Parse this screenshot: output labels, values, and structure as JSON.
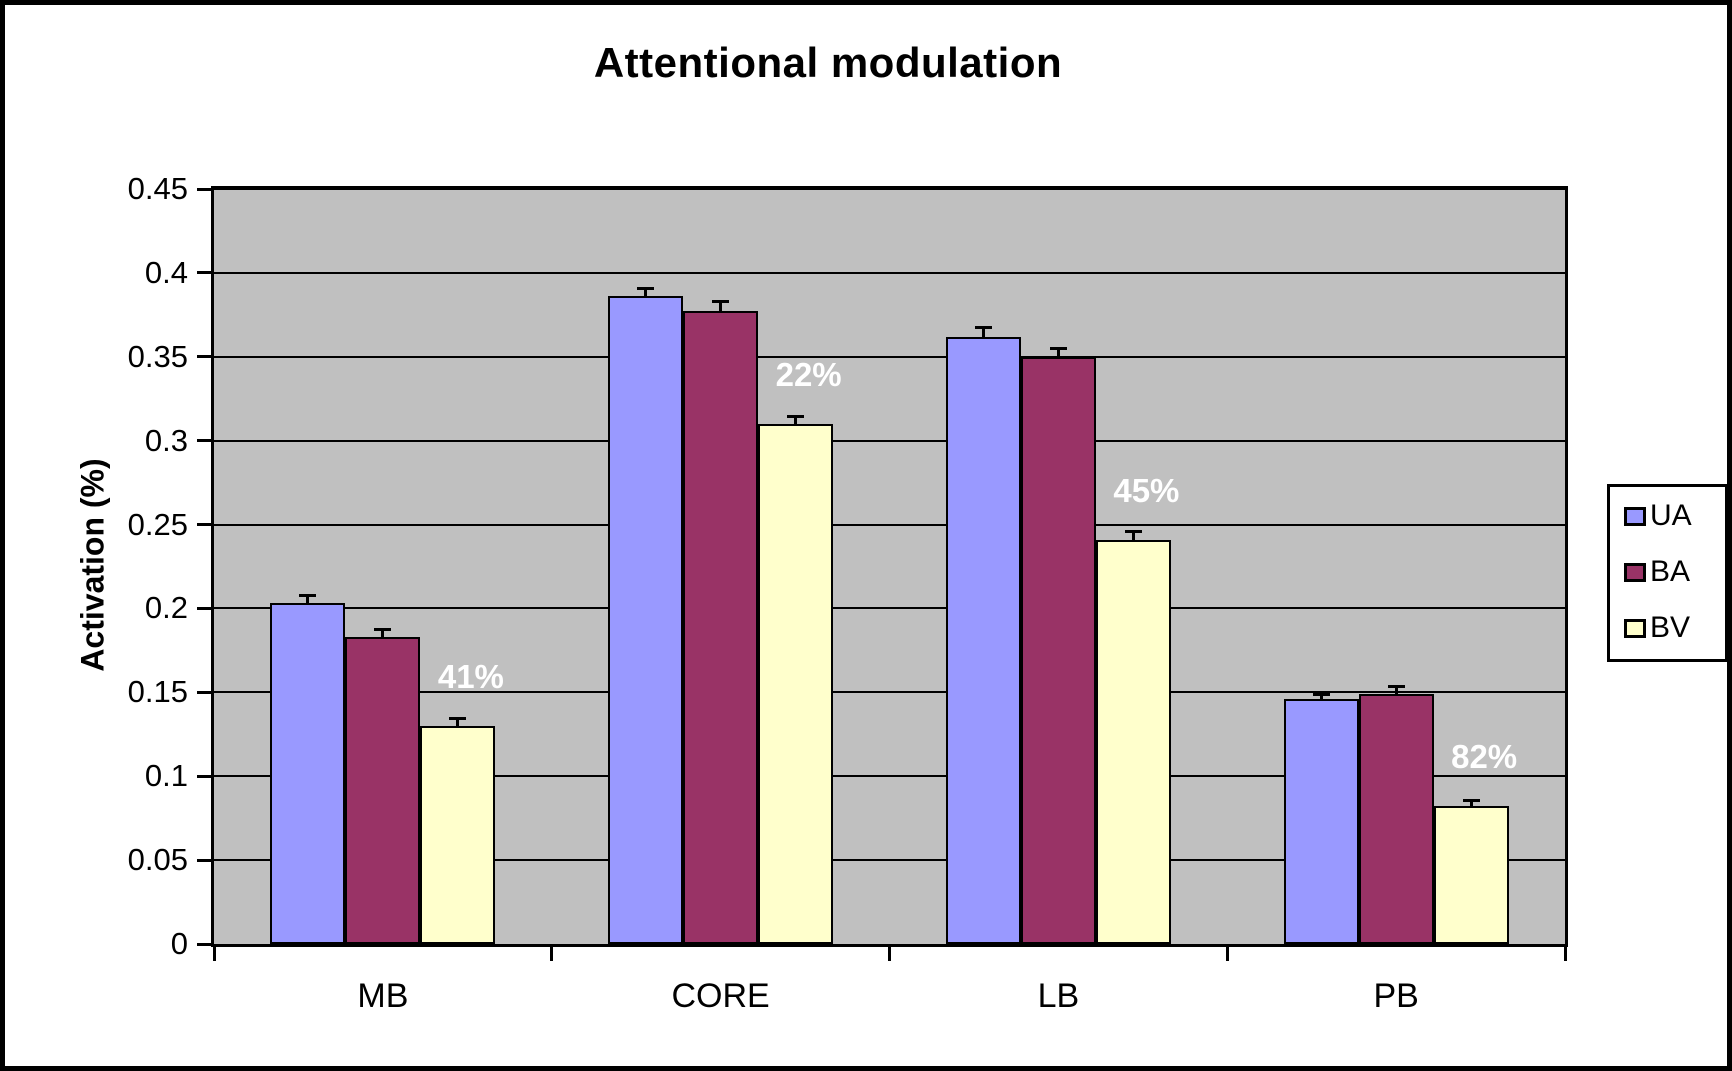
{
  "chart_data": {
    "type": "bar",
    "title": "Attentional modulation",
    "ylabel": "Activation (%)",
    "xlabel": "",
    "categories": [
      "MB",
      "CORE",
      "LB",
      "PB"
    ],
    "series": [
      {
        "name": "UA",
        "color": "#9999FF",
        "values": [
          0.203,
          0.386,
          0.362,
          0.146
        ],
        "errors": [
          0.005,
          0.005,
          0.006,
          0.003
        ]
      },
      {
        "name": "BA",
        "color": "#993366",
        "values": [
          0.183,
          0.377,
          0.35,
          0.149
        ],
        "errors": [
          0.005,
          0.006,
          0.005,
          0.005
        ]
      },
      {
        "name": "BV",
        "color": "#FFFFCC",
        "values": [
          0.13,
          0.31,
          0.241,
          0.082
        ],
        "errors": [
          0.005,
          0.005,
          0.005,
          0.004
        ]
      }
    ],
    "annotations": [
      {
        "category": "MB",
        "series": "BV",
        "label": "41%"
      },
      {
        "category": "CORE",
        "series": "BV",
        "label": "22%"
      },
      {
        "category": "LB",
        "series": "BV",
        "label": "45%"
      },
      {
        "category": "PB",
        "series": "BV",
        "label": "82%"
      }
    ],
    "ylim": [
      0,
      0.45
    ],
    "ytick_step": 0.05,
    "ytick_labels": [
      "0",
      "0.05",
      "0.1",
      "0.15",
      "0.2",
      "0.25",
      "0.3",
      "0.35",
      "0.4",
      "0.45"
    ],
    "grid": true,
    "error_bars": true,
    "legend_position": "right",
    "colors": {
      "plot_background": "#C0C0C0",
      "gridline": "#000000",
      "bar_border": "#000000",
      "annotation_text": "#FFFFFF",
      "axis_text": "#000000",
      "background": "#FFFFFF",
      "frame_border": "#000000"
    }
  }
}
